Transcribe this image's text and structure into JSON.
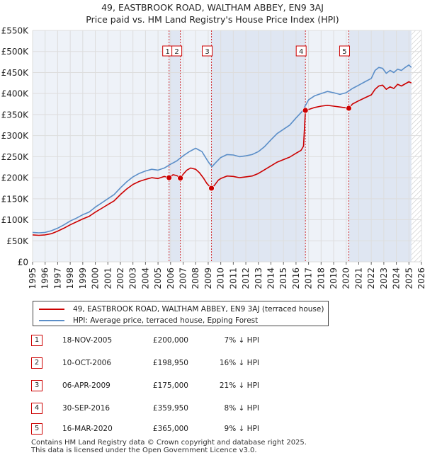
{
  "chart_data": {
    "type": "line",
    "title": "49, EASTBROOK ROAD, WALTHAM ABBEY, EN9 3AJ",
    "subtitle": "Price paid vs. HM Land Registry's House Price Index (HPI)",
    "xlabel": "",
    "ylabel": "",
    "xlim": [
      1995,
      2026
    ],
    "ylim": [
      0,
      550000
    ],
    "grid": true,
    "y_ticks": [
      {
        "value": 0,
        "label": "£0"
      },
      {
        "value": 50000,
        "label": "£50K"
      },
      {
        "value": 100000,
        "label": "£100K"
      },
      {
        "value": 150000,
        "label": "£150K"
      },
      {
        "value": 200000,
        "label": "£200K"
      },
      {
        "value": 250000,
        "label": "£250K"
      },
      {
        "value": 300000,
        "label": "£300K"
      },
      {
        "value": 350000,
        "label": "£350K"
      },
      {
        "value": 400000,
        "label": "£400K"
      },
      {
        "value": 450000,
        "label": "£450K"
      },
      {
        "value": 500000,
        "label": "£500K"
      },
      {
        "value": 550000,
        "label": "£550K"
      }
    ],
    "x_ticks": [
      "1995",
      "1996",
      "1997",
      "1998",
      "1999",
      "2000",
      "2001",
      "2002",
      "2003",
      "2004",
      "2005",
      "2006",
      "2007",
      "2008",
      "2009",
      "2010",
      "2011",
      "2012",
      "2013",
      "2014",
      "2015",
      "2016",
      "2017",
      "2018",
      "2019",
      "2020",
      "2021",
      "2022",
      "2023",
      "2024",
      "2025",
      "2026"
    ],
    "data_end": 2025.2,
    "series": [
      {
        "name": "49, EASTBROOK ROAD, WALTHAM ABBEY, EN9 3AJ (terraced house)",
        "color": "#cc0000",
        "x": [
          1995,
          1995.5,
          1996,
          1996.5,
          1997,
          1997.5,
          1998,
          1998.5,
          1999,
          1999.5,
          2000,
          2000.5,
          2001,
          2001.5,
          2002,
          2002.5,
          2003,
          2003.5,
          2004,
          2004.5,
          2005,
          2005.5,
          2005.88,
          2006.2,
          2006.5,
          2006.78,
          2007,
          2007.3,
          2007.6,
          2008,
          2008.3,
          2008.6,
          2008.9,
          2009.26,
          2009.5,
          2009.8,
          2010,
          2010.5,
          2011,
          2011.5,
          2012,
          2012.5,
          2013,
          2013.5,
          2014,
          2014.5,
          2015,
          2015.5,
          2016,
          2016.4,
          2016.6,
          2016.75,
          2017,
          2017.5,
          2018,
          2018.5,
          2019,
          2019.5,
          2020,
          2020.21,
          2020.5,
          2021,
          2021.5,
          2022,
          2022.3,
          2022.6,
          2022.9,
          2023.2,
          2023.5,
          2023.8,
          2024.1,
          2024.4,
          2024.7,
          2025,
          2025.2
        ],
        "values": [
          64000,
          63000,
          64000,
          67000,
          73000,
          80000,
          88000,
          95000,
          102000,
          108000,
          118000,
          127000,
          136000,
          145000,
          160000,
          173000,
          184000,
          191000,
          196000,
          200000,
          198000,
          203000,
          200000,
          207000,
          205000,
          198950,
          208000,
          218000,
          223000,
          220000,
          212000,
          200000,
          186000,
          175000,
          182000,
          194000,
          198000,
          204000,
          203000,
          200000,
          202000,
          204000,
          210000,
          219000,
          228000,
          237000,
          243000,
          249000,
          258000,
          265000,
          275000,
          359950,
          362000,
          367000,
          370000,
          372000,
          370000,
          368000,
          366000,
          365000,
          375000,
          383000,
          390000,
          397000,
          410000,
          418000,
          420000,
          410000,
          416000,
          412000,
          422000,
          418000,
          423000,
          428000,
          425000
        ]
      },
      {
        "name": "HPI: Average price, terraced house, Epping Forest",
        "color": "#5b8ec8",
        "x": [
          1995,
          1995.5,
          1996,
          1996.5,
          1997,
          1997.5,
          1998,
          1998.5,
          1999,
          1999.5,
          2000,
          2000.5,
          2001,
          2001.5,
          2002,
          2002.5,
          2003,
          2003.5,
          2004,
          2004.5,
          2005,
          2005.5,
          2006,
          2006.5,
          2007,
          2007.5,
          2008,
          2008.5,
          2009,
          2009.3,
          2009.6,
          2010,
          2010.5,
          2011,
          2011.5,
          2012,
          2012.5,
          2013,
          2013.5,
          2014,
          2014.5,
          2015,
          2015.5,
          2016,
          2016.5,
          2017,
          2017.5,
          2018,
          2018.5,
          2019,
          2019.5,
          2020,
          2020.5,
          2021,
          2021.5,
          2022,
          2022.3,
          2022.6,
          2022.9,
          2023.2,
          2023.5,
          2023.8,
          2024.1,
          2024.4,
          2024.7,
          2025,
          2025.2
        ],
        "values": [
          70000,
          69000,
          70000,
          74000,
          80000,
          88000,
          97000,
          104000,
          112000,
          118000,
          130000,
          140000,
          150000,
          160000,
          176000,
          190000,
          202000,
          210000,
          216000,
          220000,
          218000,
          223000,
          232000,
          240000,
          252000,
          262000,
          270000,
          262000,
          238000,
          226000,
          236000,
          248000,
          255000,
          254000,
          250000,
          252000,
          255000,
          262000,
          274000,
          290000,
          305000,
          315000,
          325000,
          342000,
          358000,
          385000,
          395000,
          400000,
          405000,
          402000,
          398000,
          402000,
          412000,
          420000,
          428000,
          436000,
          455000,
          462000,
          460000,
          448000,
          455000,
          450000,
          458000,
          455000,
          462000,
          468000,
          462000
        ]
      }
    ],
    "markers": [
      {
        "id": "1",
        "x": 2005.88,
        "value": 200000
      },
      {
        "id": "2",
        "x": 2006.78,
        "value": 198950
      },
      {
        "id": "3",
        "x": 2009.26,
        "value": 175000
      },
      {
        "id": "4",
        "x": 2016.75,
        "value": 359950
      },
      {
        "id": "5",
        "x": 2020.21,
        "value": 365000
      }
    ]
  },
  "legend": {
    "property_label": "49, EASTBROOK ROAD, WALTHAM ABBEY, EN9 3AJ (terraced house)",
    "hpi_label": "HPI: Average price, terraced house, Epping Forest"
  },
  "sales": [
    {
      "num": "1",
      "date": "18-NOV-2005",
      "price": "£200,000",
      "hpi": "7% ↓ HPI"
    },
    {
      "num": "2",
      "date": "10-OCT-2006",
      "price": "£198,950",
      "hpi": "16% ↓ HPI"
    },
    {
      "num": "3",
      "date": "06-APR-2009",
      "price": "£175,000",
      "hpi": "21% ↓ HPI"
    },
    {
      "num": "4",
      "date": "30-SEP-2016",
      "price": "£359,950",
      "hpi": "8% ↓ HPI"
    },
    {
      "num": "5",
      "date": "16-MAR-2020",
      "price": "£365,000",
      "hpi": "9% ↓ HPI"
    }
  ],
  "footer": {
    "line1": "Contains HM Land Registry data © Crown copyright and database right 2025.",
    "line2": "This data is licensed under the Open Government Licence v3.0."
  },
  "colors": {
    "property": "#cc0000",
    "hpi": "#5b8ec8",
    "grid": "#dddddd",
    "plot_bg": "#eef2f8",
    "shade": "#dfe6f2"
  }
}
